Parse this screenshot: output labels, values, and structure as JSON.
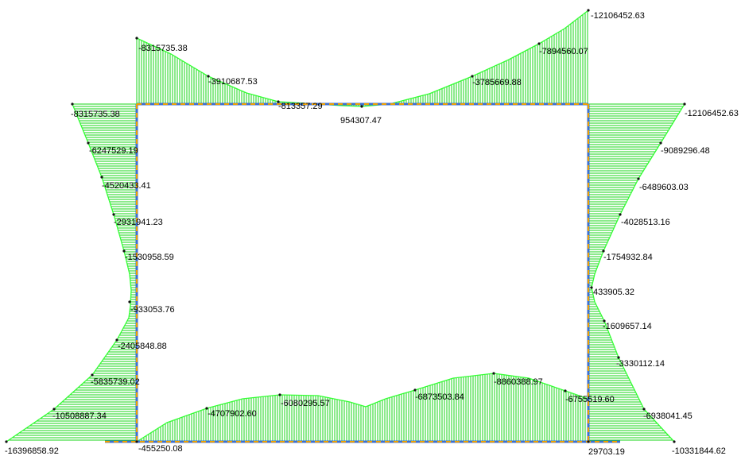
{
  "colors": {
    "background": "#ffffff",
    "hatch": "#18d418",
    "outline": "#33ff33",
    "frame_member": "#3f6fd0",
    "frame_dash": "#f0a000",
    "node_marker": "#111111",
    "label": "#000000"
  },
  "top_beam": {
    "labels": [
      "-8315735.38",
      "-3910687.53",
      "-813357.29",
      "954307.47",
      "-3785669.88",
      "-7894560.07",
      "-12106452.63"
    ]
  },
  "left_column": {
    "labels": [
      "-8315735.38",
      "-6247529.19",
      "-4520433.41",
      "-2931941.23",
      "-1530958.59",
      "-933053.76",
      "-2405848.88",
      "-5835739.02",
      "-10508887.34",
      "-16396858.92"
    ]
  },
  "right_column": {
    "labels": [
      "-12106452.63",
      "-9089296.48",
      "-6489603.03",
      "-4028513.16",
      "-1754932.84",
      "433905.32",
      "-1609657.14",
      "-3330112.14",
      "-6938041.45",
      "-10331844.62"
    ]
  },
  "bottom_beam": {
    "labels": [
      "-455250.08",
      "-4707902.60",
      "-6080295.57",
      "-6873503.84",
      "-8860388.97",
      "-6755519.60",
      "29703.19"
    ]
  }
}
